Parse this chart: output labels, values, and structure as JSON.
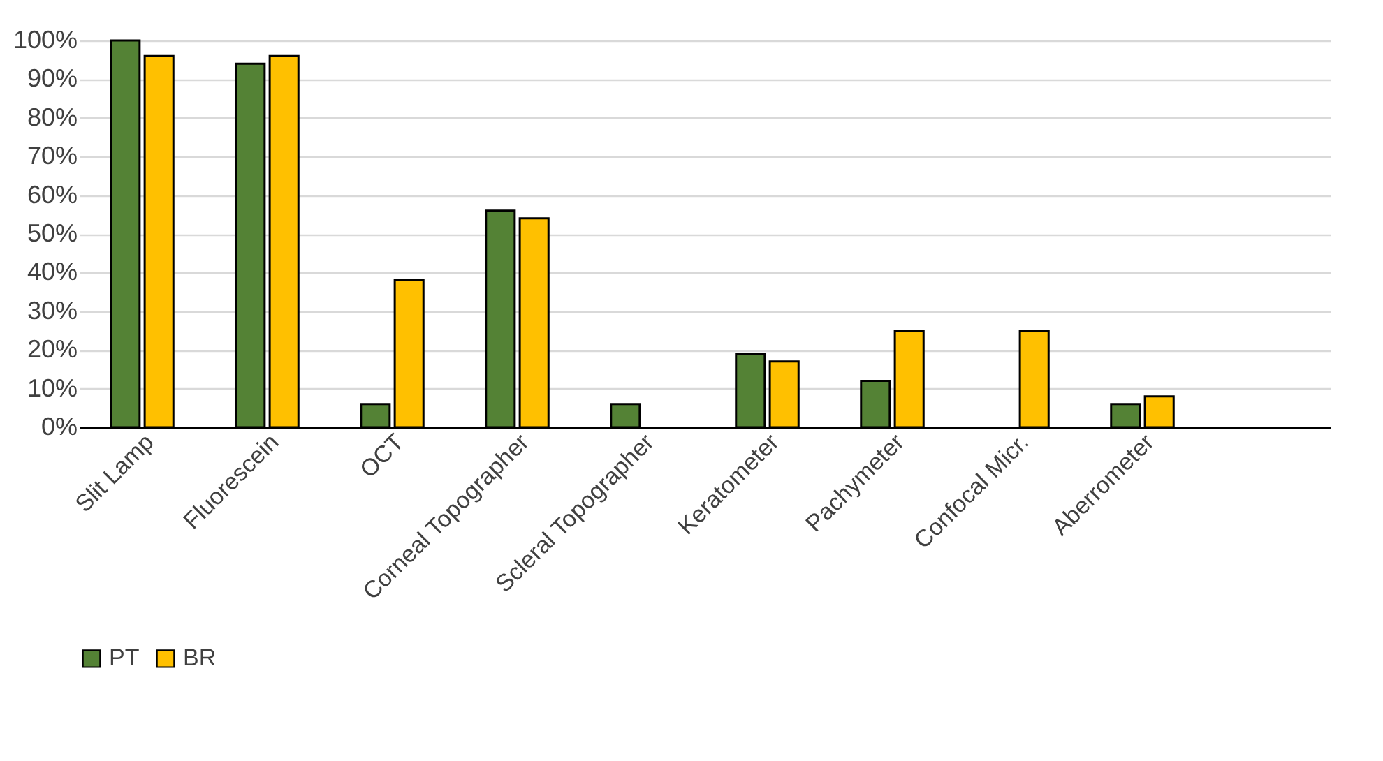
{
  "chart_data": {
    "type": "bar",
    "categories": [
      "Slit Lamp",
      "Fluorescein",
      "OCT",
      "Corneal Topographer",
      "Scleral Topographer",
      "Keratometer",
      "Pachymeter",
      "Confocal Micr.",
      "Aberrometer",
      null
    ],
    "series": [
      {
        "name": "PT",
        "color": "#548235",
        "values": [
          100,
          94,
          6,
          56,
          6,
          19,
          12,
          null,
          6,
          null
        ]
      },
      {
        "name": "BR",
        "color": "#ffc000",
        "values": [
          96,
          96,
          38,
          54,
          null,
          17,
          25,
          25,
          8,
          null
        ]
      }
    ],
    "ylim": [
      0,
      100
    ],
    "yticks": [
      {
        "value": 0,
        "label": "0%"
      },
      {
        "value": 10,
        "label": "10%"
      },
      {
        "value": 20,
        "label": "20%"
      },
      {
        "value": 30,
        "label": "30%"
      },
      {
        "value": 40,
        "label": "40%"
      },
      {
        "value": 50,
        "label": "50%"
      },
      {
        "value": 60,
        "label": "60%"
      },
      {
        "value": 70,
        "label": "70%"
      },
      {
        "value": 80,
        "label": "80%"
      },
      {
        "value": 90,
        "label": "90%"
      },
      {
        "value": 100,
        "label": "100%"
      }
    ],
    "grid": "y",
    "legend": "bottom"
  }
}
